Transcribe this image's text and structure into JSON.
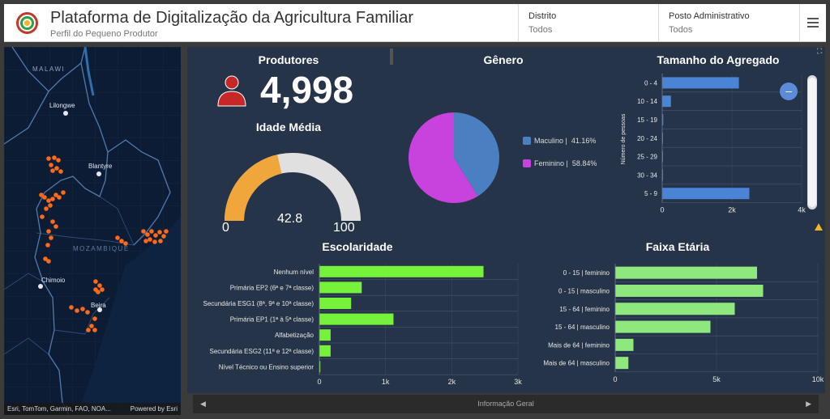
{
  "header": {
    "title": "Plataforma de Digitalização da Agricultura Familiar",
    "subtitle": "Perfil do Pequeno Produtor",
    "filters": [
      {
        "label": "Distrito",
        "value": "Todos"
      },
      {
        "label": "Posto Administrativo",
        "value": "Todos"
      }
    ]
  },
  "map": {
    "labels": {
      "malawi": "MALAWI",
      "lilongwe": "Lilongwe",
      "blantyre": "Blantyre",
      "mozambique": "MOZAMBIQUE",
      "chimoio": "Chimoio",
      "beira": "Beira"
    },
    "attribution": "Esri, TomTom, Garmin, FAO, NOA...",
    "powered_by": "Powered by Esri"
  },
  "producers": {
    "title": "Produtores",
    "value": "4,998",
    "icon": "person-icon"
  },
  "age": {
    "title": "Idade Média",
    "value": "42.8",
    "min": "0",
    "max": "100",
    "value_num": 42.8,
    "max_num": 100
  },
  "gender": {
    "title": "Gênero",
    "items": [
      {
        "label": "Maculino |",
        "percent": "41.16%",
        "value": 41.16,
        "color": "#4a7fc1"
      },
      {
        "label": "Feminino |",
        "percent": "58.84%",
        "value": 58.84,
        "color": "#c843dd"
      }
    ]
  },
  "household": {
    "title": "Tamanho do Agregado",
    "ylabel": "Número de pessoas",
    "ticks": [
      "0",
      "2k",
      "4k"
    ],
    "tick_values": [
      0,
      2000,
      4000
    ],
    "color": "#4a84d4"
  },
  "schooling": {
    "title": "Escolaridade",
    "ticks": [
      "0",
      "1k",
      "2k",
      "3k"
    ],
    "tick_values": [
      0,
      1000,
      2000,
      3000
    ],
    "color": "#77f23a"
  },
  "agegroups": {
    "title": "Faixa Etária",
    "ticks": [
      "0",
      "5k",
      "10k"
    ],
    "tick_values": [
      0,
      5000,
      10000
    ],
    "color": "#8fe87e"
  },
  "chart_data": [
    {
      "type": "pie",
      "title": "Gênero",
      "categories": [
        "Maculino",
        "Feminino"
      ],
      "values": [
        41.16,
        58.84
      ]
    },
    {
      "type": "bar",
      "title": "Tamanho do Agregado",
      "ylabel": "Número de pessoas",
      "categories": [
        "0 - 4",
        "10 - 14",
        "15 - 19",
        "20 - 24",
        "25 - 29",
        "30 - 34",
        "5 - 9"
      ],
      "values": [
        2200,
        250,
        30,
        15,
        8,
        5,
        2500
      ],
      "xlim": [
        0,
        4000
      ]
    },
    {
      "type": "bar",
      "title": "Escolaridade",
      "categories": [
        "Nenhum nível",
        "Primária EP2 (6ª e 7ª classe)",
        "Secundária ESG1 (8ª, 9ª e 10ª classe)",
        "Primária EP1 (1ª à 5ª classe)",
        "Alfabetização",
        "Secundária ESG2 (11ª e 12ª classe)",
        "Nível Técnico ou Ensino superior"
      ],
      "values": [
        2480,
        640,
        480,
        1120,
        170,
        170,
        15
      ],
      "xlim": [
        0,
        3000
      ]
    },
    {
      "type": "bar",
      "title": "Faixa Etária",
      "categories": [
        "0 - 15 | feminino",
        "0 - 15 | masculino",
        "15 - 64 | feminino",
        "15 - 64 | masculino",
        "Mais de 64 | feminino",
        "Mais de 64 | masculino"
      ],
      "values": [
        7000,
        7300,
        5900,
        4700,
        900,
        650
      ],
      "xlim": [
        0,
        10000
      ]
    }
  ],
  "nav": {
    "label": "Informação Geral"
  }
}
